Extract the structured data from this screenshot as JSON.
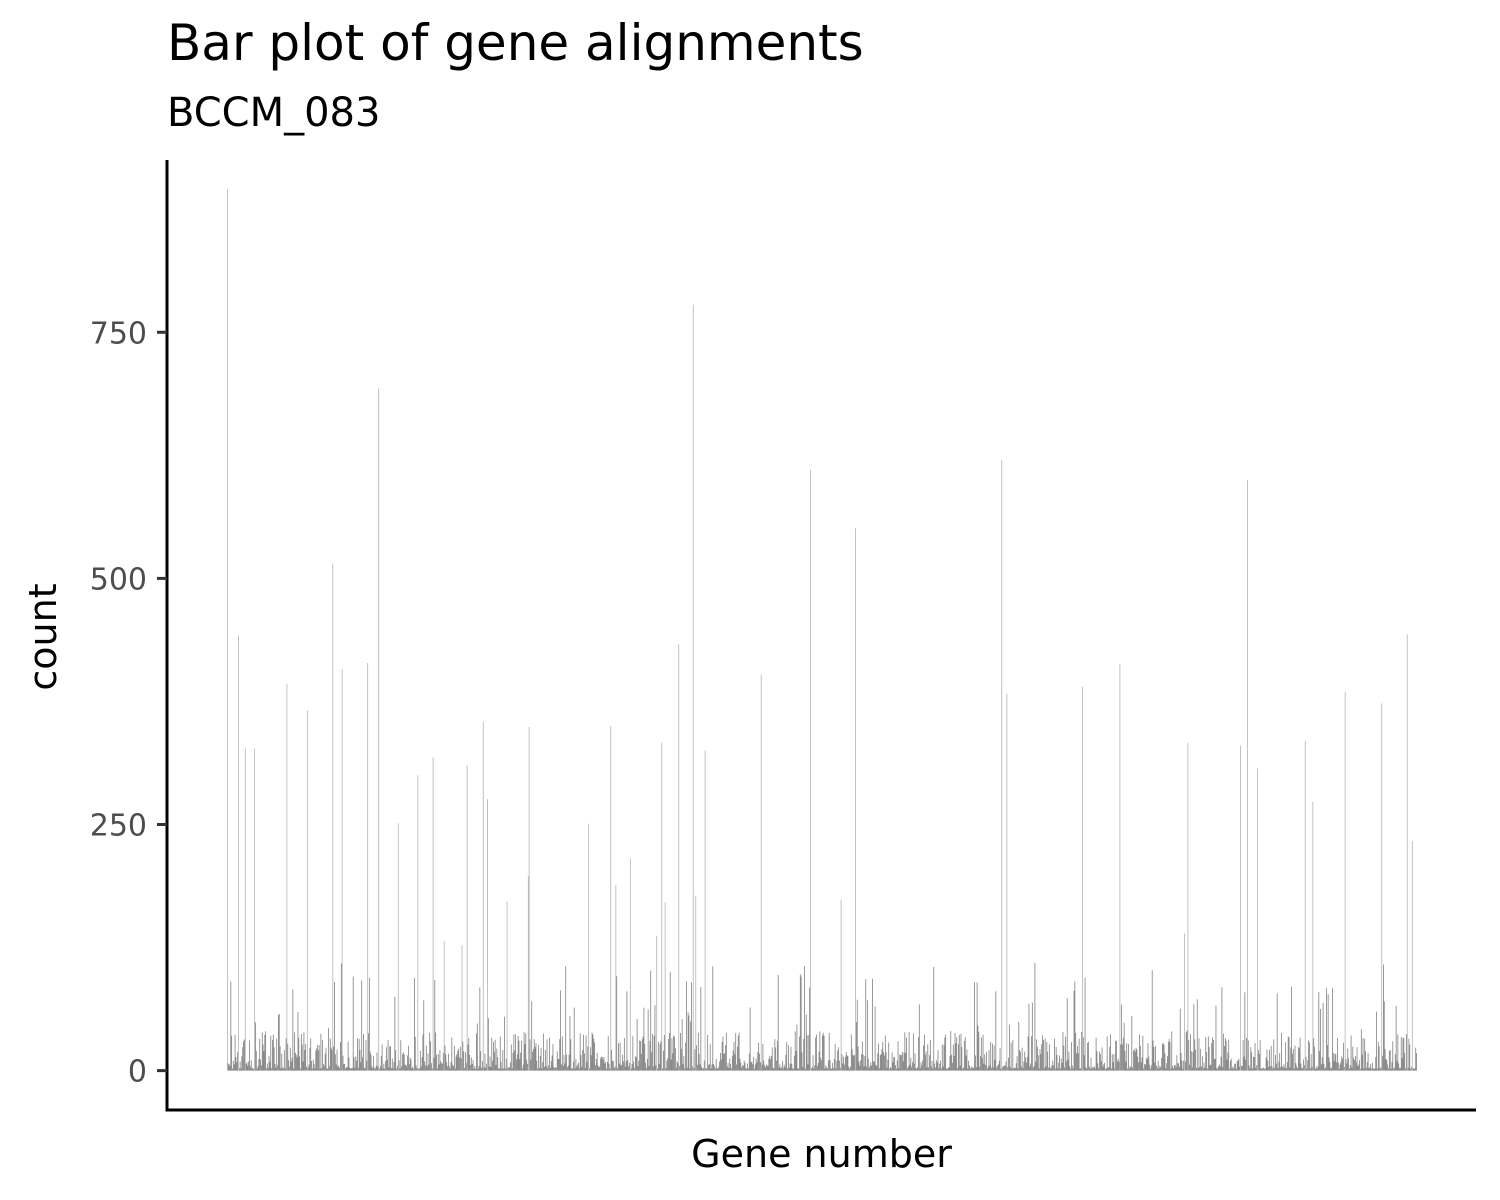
{
  "chart_data": {
    "type": "bar",
    "title": "Bar plot of gene alignments",
    "subtitle": "BCCM_083",
    "xlabel": "Gene number",
    "ylabel": "count",
    "ylim": [
      -40,
      925
    ],
    "yticks": [
      0,
      250,
      500,
      750
    ],
    "ytick_labels": [
      "0",
      "250",
      "500",
      "750"
    ],
    "x_tick_labels": [],
    "grid": false,
    "legend": "none",
    "bar_color": "#595959",
    "n_bars": 1400,
    "baseline_note": "values are gene indices 1..1400; most counts are small (under 80) with tall peaks listed below",
    "peaks": [
      {
        "x": 1,
        "y": 895
      },
      {
        "x": 14,
        "y": 442
      },
      {
        "x": 22,
        "y": 328
      },
      {
        "x": 33,
        "y": 327
      },
      {
        "x": 71,
        "y": 393
      },
      {
        "x": 95,
        "y": 366
      },
      {
        "x": 125,
        "y": 515
      },
      {
        "x": 136,
        "y": 408
      },
      {
        "x": 166,
        "y": 414
      },
      {
        "x": 179,
        "y": 693
      },
      {
        "x": 225,
        "y": 300
      },
      {
        "x": 243,
        "y": 318
      },
      {
        "x": 283,
        "y": 310
      },
      {
        "x": 302,
        "y": 354
      },
      {
        "x": 356,
        "y": 349
      },
      {
        "x": 452,
        "y": 350
      },
      {
        "x": 512,
        "y": 333
      },
      {
        "x": 532,
        "y": 433
      },
      {
        "x": 549,
        "y": 778
      },
      {
        "x": 563,
        "y": 325
      },
      {
        "x": 629,
        "y": 402
      },
      {
        "x": 687,
        "y": 610
      },
      {
        "x": 740,
        "y": 551
      },
      {
        "x": 912,
        "y": 620
      },
      {
        "x": 918,
        "y": 383
      },
      {
        "x": 1007,
        "y": 390
      },
      {
        "x": 1051,
        "y": 413
      },
      {
        "x": 1131,
        "y": 333
      },
      {
        "x": 1193,
        "y": 330
      },
      {
        "x": 1201,
        "y": 600
      },
      {
        "x": 1213,
        "y": 307
      },
      {
        "x": 1269,
        "y": 335
      },
      {
        "x": 1316,
        "y": 385
      },
      {
        "x": 1359,
        "y": 373
      },
      {
        "x": 1389,
        "y": 443
      },
      {
        "x": 1395,
        "y": 233
      }
    ],
    "background_seed": 83
  }
}
